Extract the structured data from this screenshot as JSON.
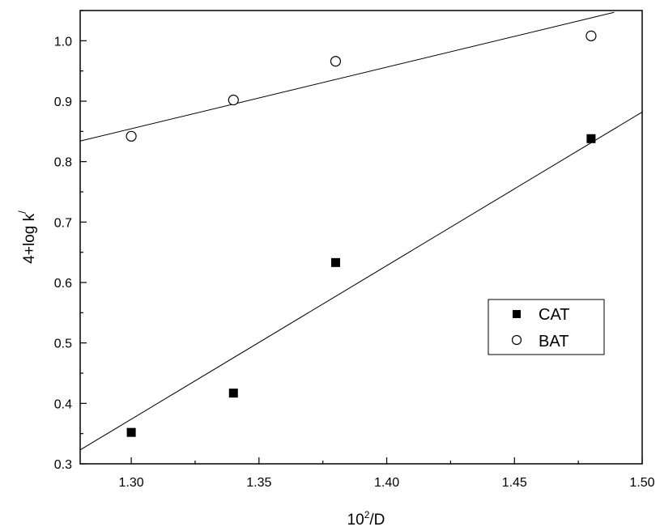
{
  "chart_data": {
    "type": "scatter",
    "title": "",
    "xlabel": {
      "base": "10",
      "sup": "2",
      "rest": "/D"
    },
    "ylabel": {
      "main": "4+log k",
      "sup": "/"
    },
    "xlim": [
      1.28,
      1.5
    ],
    "ylim": [
      0.3,
      1.05
    ],
    "xticks": [
      "1.30",
      "1.35",
      "1.40",
      "1.45",
      "1.50"
    ],
    "yticks": [
      "0.3",
      "0.4",
      "0.5",
      "0.6",
      "0.7",
      "0.8",
      "0.9",
      "1.0"
    ],
    "legend_position": "lower-right",
    "series": [
      {
        "name": "CAT",
        "marker": "filled-square",
        "color": "#000000",
        "x": [
          1.3,
          1.34,
          1.38,
          1.48
        ],
        "y": [
          0.352,
          0.417,
          0.633,
          0.838
        ],
        "fit": {
          "x": [
            1.28,
            1.5
          ],
          "y": [
            0.323,
            0.882
          ]
        }
      },
      {
        "name": "BAT",
        "marker": "open-circle",
        "color": "#000000",
        "x": [
          1.3,
          1.34,
          1.38,
          1.48
        ],
        "y": [
          0.842,
          0.902,
          0.966,
          1.008
        ],
        "fit": {
          "x": [
            1.28,
            1.489
          ],
          "y": [
            0.834,
            1.047
          ]
        }
      }
    ]
  }
}
